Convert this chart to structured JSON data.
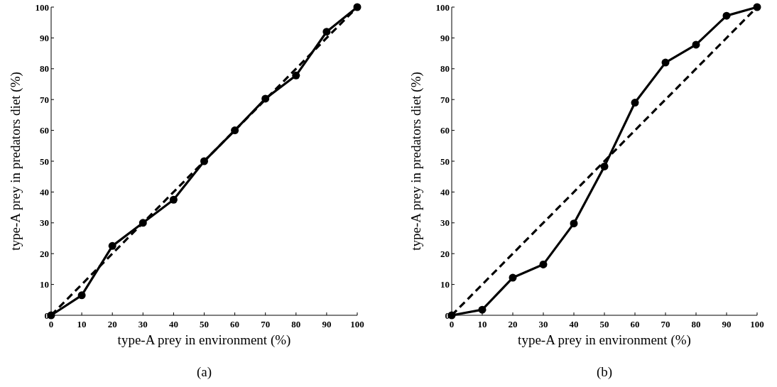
{
  "chart_data": [
    {
      "type": "line",
      "xlabel": "type-A prey in environment (%)",
      "ylabel": "type-A prey in predators diet (%)",
      "annotations": [
        "(a)"
      ],
      "xlim": [
        0,
        100
      ],
      "ylim": [
        0,
        100
      ],
      "xticks": [
        0,
        10,
        20,
        30,
        40,
        50,
        60,
        70,
        80,
        90,
        100
      ],
      "yticks": [
        0,
        10,
        20,
        30,
        40,
        50,
        60,
        70,
        80,
        90,
        100
      ],
      "series": [
        {
          "color": "#000000",
          "x": [
            0,
            10,
            20,
            30,
            40,
            50,
            60,
            70,
            80,
            90,
            100
          ],
          "values": [
            0,
            6.5,
            22.5,
            30,
            37.5,
            50,
            60,
            70.3,
            77.8,
            92,
            100
          ],
          "marker": "circle",
          "line_style": "solid"
        },
        {
          "color": "#000000",
          "x": [
            0,
            100
          ],
          "values": [
            0,
            100
          ],
          "marker": "none",
          "line_style": "dashed"
        }
      ]
    },
    {
      "type": "line",
      "xlabel": "type-A prey in environment (%)",
      "ylabel": "type-A prey in predators diet (%)",
      "annotations": [
        "(b)"
      ],
      "xlim": [
        0,
        100
      ],
      "ylim": [
        0,
        100
      ],
      "xticks": [
        0,
        10,
        20,
        30,
        40,
        50,
        60,
        70,
        80,
        90,
        100
      ],
      "yticks": [
        0,
        10,
        20,
        30,
        40,
        50,
        60,
        70,
        80,
        90,
        100
      ],
      "series": [
        {
          "color": "#000000",
          "x": [
            0,
            10,
            20,
            30,
            40,
            50,
            60,
            70,
            80,
            90,
            100
          ],
          "values": [
            0,
            1.8,
            12.2,
            16.5,
            29.8,
            48.3,
            69,
            82,
            87.8,
            97.2,
            100
          ],
          "marker": "circle",
          "line_style": "solid"
        },
        {
          "color": "#000000",
          "x": [
            0,
            100
          ],
          "values": [
            0,
            100
          ],
          "marker": "none",
          "line_style": "dashed"
        }
      ]
    }
  ]
}
